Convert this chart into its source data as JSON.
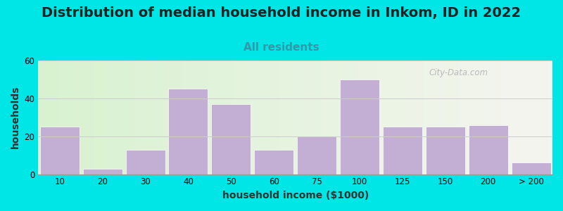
{
  "title": "Distribution of median household income in Inkom, ID in 2022",
  "subtitle": "All residents",
  "xlabel": "household income ($1000)",
  "ylabel": "households",
  "bar_labels": [
    "10",
    "20",
    "30",
    "40",
    "50",
    "60",
    "75",
    "100",
    "125",
    "150",
    "200",
    "> 200"
  ],
  "bar_values": [
    25,
    3,
    13,
    45,
    37,
    13,
    20,
    50,
    25,
    25,
    26,
    6
  ],
  "bar_color": "#c4afd4",
  "bar_edgecolor": "#ffffff",
  "ylim": [
    0,
    60
  ],
  "yticks": [
    0,
    20,
    40,
    60
  ],
  "background_color": "#00e5e5",
  "title_fontsize": 14,
  "subtitle_fontsize": 11,
  "subtitle_color": "#3399aa",
  "axis_label_fontsize": 10,
  "tick_fontsize": 8.5,
  "watermark": "City-Data.com",
  "bg_gradient_left": "#d8f2d0",
  "bg_gradient_right": "#f5f5f0"
}
